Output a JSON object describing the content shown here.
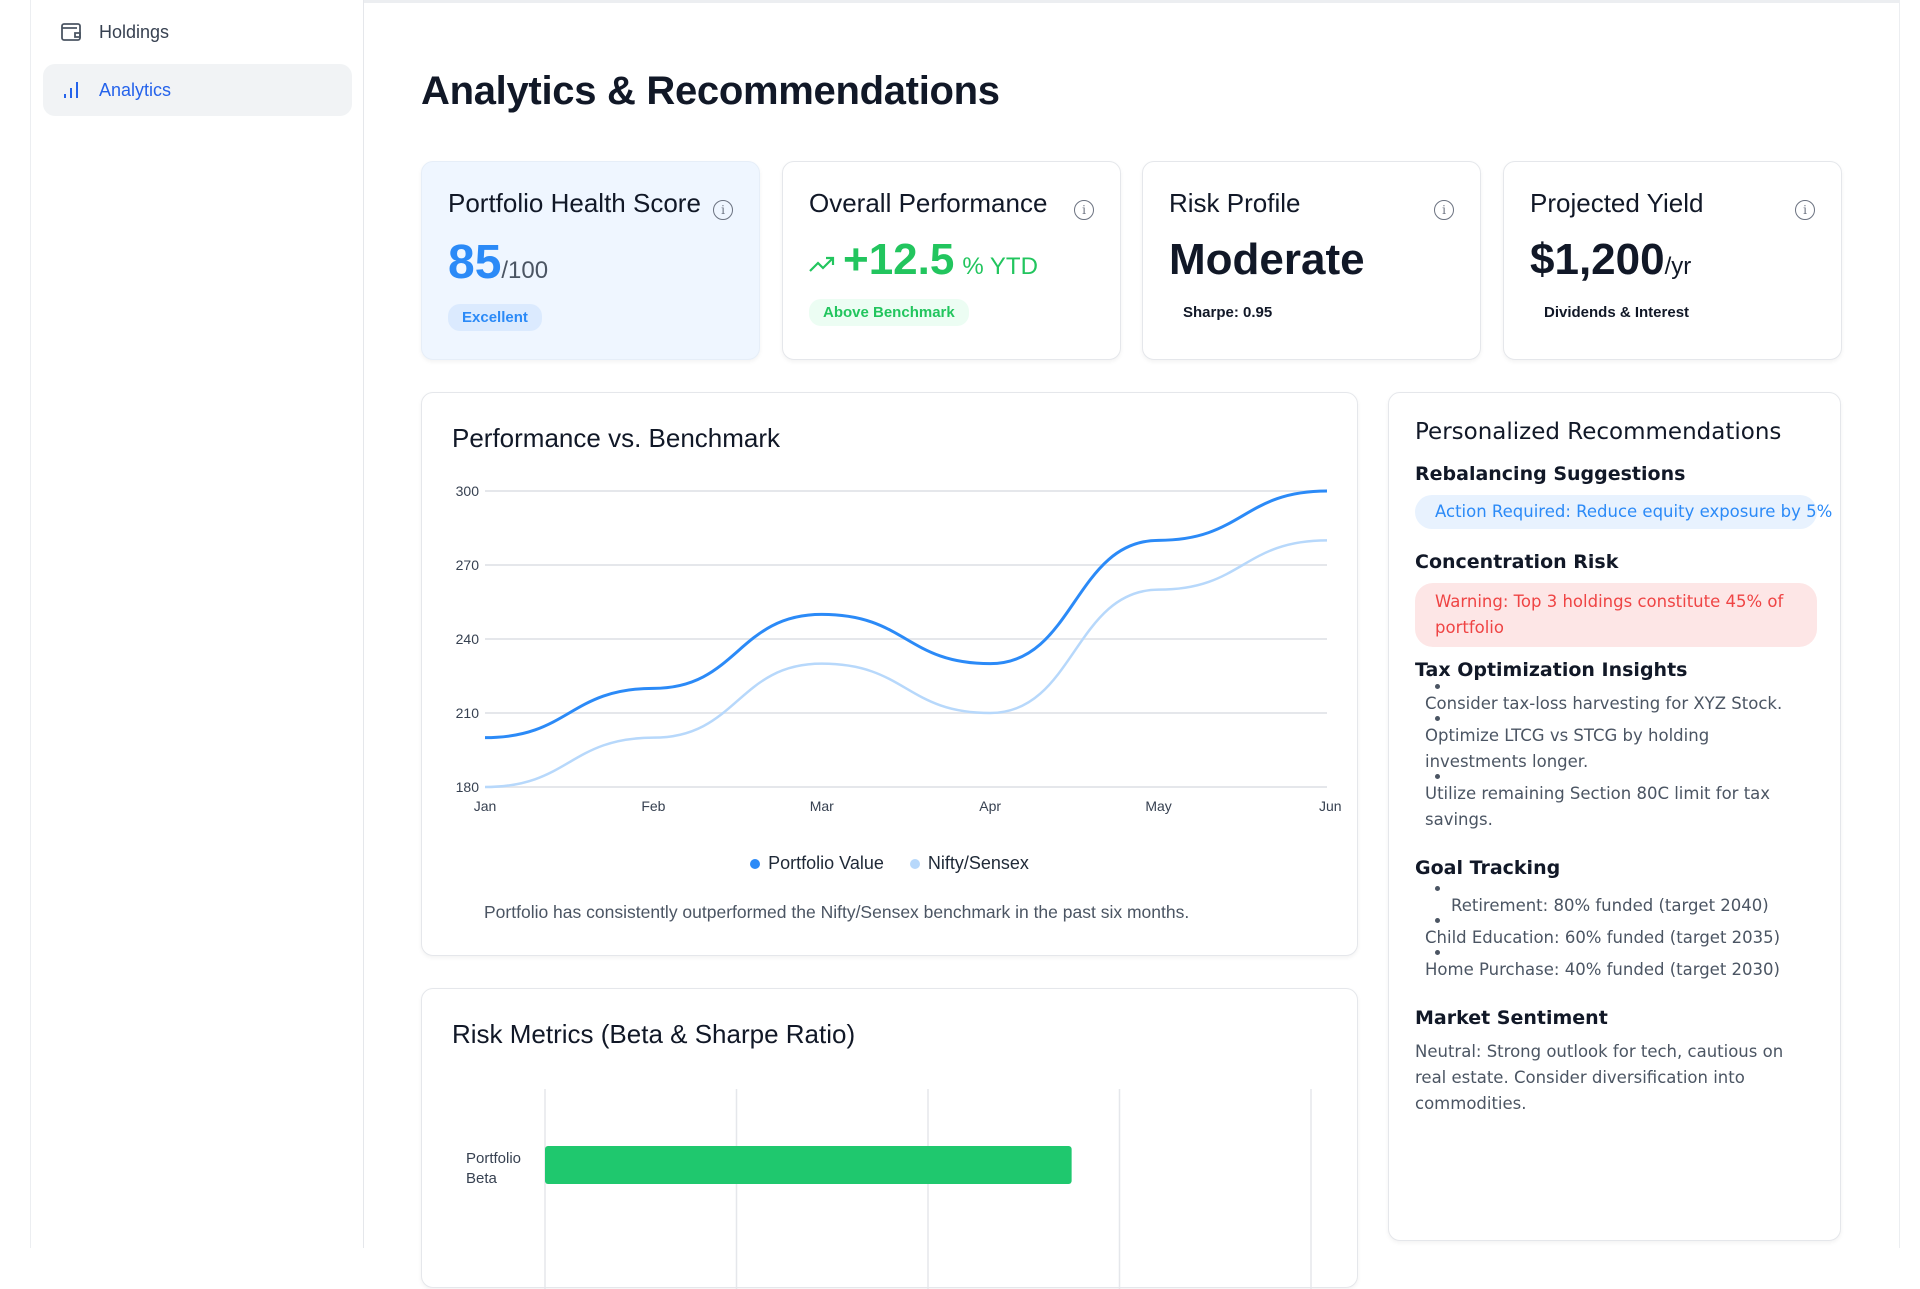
{
  "sidebar": {
    "items": [
      {
        "label": "Holdings",
        "icon": "wallet-icon"
      },
      {
        "label": "Analytics",
        "icon": "bar-chart-icon",
        "active": true
      }
    ]
  },
  "page": {
    "title": "Analytics & Recommendations"
  },
  "stats": [
    {
      "title": "Portfolio Health Score",
      "value": "85",
      "suffix": "/100",
      "badge": "Excellent"
    },
    {
      "title": "Overall Performance",
      "value": "+12.5",
      "suffix": "% YTD",
      "badge": "Above Benchmark"
    },
    {
      "title": "Risk Profile",
      "value": "Moderate",
      "badge": "Sharpe: 0.95"
    },
    {
      "title": "Projected Yield",
      "value": "$1,200",
      "suffix": "/yr",
      "badge": "Dividends & Interest"
    }
  ],
  "colors": {
    "accent": "#2b8af7",
    "benchmark": "#b7d8fb",
    "green": "#22c55e",
    "red": "#ef4444"
  },
  "chart_data": [
    {
      "type": "line",
      "title": "Performance vs. Benchmark",
      "categories": [
        "Jan",
        "Feb",
        "Mar",
        "Apr",
        "May",
        "Jun"
      ],
      "series": [
        {
          "name": "Portfolio Value",
          "values": [
            200,
            220,
            250,
            230,
            280,
            300
          ]
        },
        {
          "name": "Nifty/Sensex",
          "values": [
            180,
            200,
            230,
            210,
            260,
            280
          ]
        }
      ],
      "yticks": [
        "180",
        "210",
        "240",
        "270",
        "300"
      ],
      "ylim": [
        180,
        300
      ],
      "grid": true,
      "legend": "bottom",
      "caption": "Portfolio has consistently outperformed the Nifty/Sensex benchmark in the past six months."
    },
    {
      "type": "bar",
      "title": "Risk Metrics (Beta & Sharpe Ratio)",
      "categories": [
        "Portfolio Beta"
      ],
      "values": [
        1.1
      ],
      "xlim": [
        0,
        1.6
      ],
      "orientation": "horizontal"
    }
  ],
  "recs": {
    "title": "Personalized Recommendations",
    "rebalancing": {
      "heading": "Rebalancing Suggestions",
      "text": "Action Required: Reduce equity exposure by 5%"
    },
    "concentration": {
      "heading": "Concentration Risk",
      "text": "Warning: Top 3 holdings constitute 45% of portfolio"
    },
    "tax": {
      "heading": "Tax Optimization Insights",
      "items": [
        "Consider tax-loss harvesting for XYZ Stock.",
        "Optimize LTCG vs STCG by holding investments longer.",
        "Utilize remaining Section 80C limit for tax savings."
      ]
    },
    "goals": {
      "heading": "Goal Tracking",
      "items": [
        "Retirement: 80% funded (target 2040)",
        "Child Education: 60% funded (target 2035)",
        "Home Purchase: 40% funded (target 2030)"
      ]
    },
    "sentiment": {
      "heading": "Market Sentiment",
      "text": "Neutral: Strong outlook for tech, cautious on real estate. Consider diversification into commodities."
    }
  }
}
